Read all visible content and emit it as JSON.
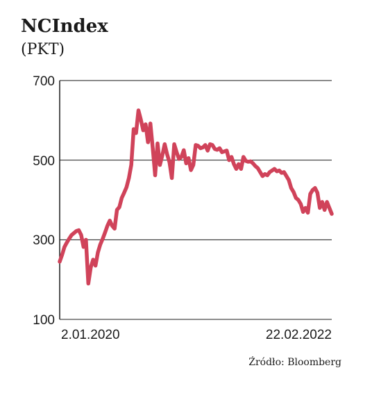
{
  "chart_data": {
    "type": "line",
    "title": "NCIndex",
    "subtitle": "(PKT)",
    "source": "Źródło: Bloomberg",
    "xlabel": "",
    "ylabel": "",
    "ylim": [
      100,
      700
    ],
    "yticks": [
      "700",
      "500",
      "300",
      "100"
    ],
    "x_tick_labels": [
      "2.01.2020",
      "22.02.2022"
    ],
    "grid": true,
    "series_color": "#d0435a",
    "series": [
      {
        "values": [
          245,
          262,
          282,
          293,
          303,
          312,
          317,
          322,
          324,
          312,
          282,
          300,
          190,
          230,
          250,
          235,
          268,
          288,
          302,
          318,
          335,
          348,
          335,
          328,
          375,
          382,
          405,
          418,
          432,
          455,
          488,
          578,
          568,
          625,
          602,
          575,
          590,
          545,
          592,
          530,
          462,
          542,
          488,
          512,
          540,
          515,
          495,
          455,
          540,
          520,
          503,
          508,
          525,
          492,
          505,
          475,
          488,
          538,
          536,
          530,
          532,
          538,
          524,
          540,
          538,
          528,
          526,
          530,
          520,
          522,
          524,
          500,
          508,
          490,
          478,
          490,
          478,
          508,
          498,
          496,
          497,
          492,
          485,
          480,
          470,
          460,
          465,
          462,
          470,
          474,
          478,
          472,
          474,
          468,
          470,
          460,
          450,
          430,
          420,
          405,
          400,
          390,
          370,
          380,
          368,
          415,
          425,
          430,
          418,
          380,
          395,
          375,
          395,
          380,
          365
        ]
      }
    ]
  }
}
